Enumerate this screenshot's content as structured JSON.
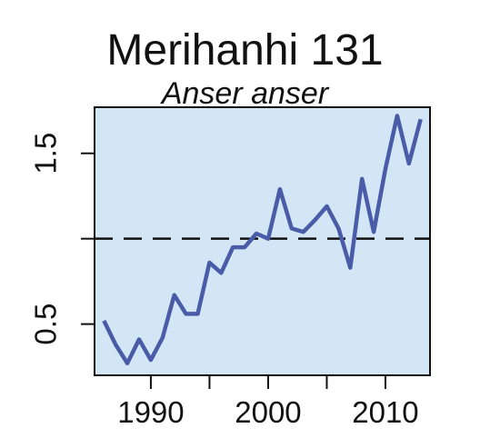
{
  "chart_data": {
    "type": "line",
    "title": "Merihanhi 131",
    "subtitle": "Anser anser",
    "xlabel": "",
    "ylabel": "",
    "xlim": [
      1985.2,
      2013.8
    ],
    "ylim": [
      0.2,
      1.77
    ],
    "x_ticks": [
      1990,
      1995,
      2000,
      2005,
      2010
    ],
    "x_tick_labels": [
      "1990",
      "",
      "2000",
      "",
      "2010"
    ],
    "y_ticks": [
      0.5,
      1.0,
      1.5
    ],
    "y_tick_labels": [
      "0.5",
      "",
      "1.5"
    ],
    "reference_line": {
      "y": 1.0,
      "style": "dashed"
    },
    "series": [
      {
        "color": "#4a5ca8",
        "x": [
          1986,
          1987,
          1988,
          1989,
          1990,
          1991,
          1992,
          1993,
          1994,
          1995,
          1996,
          1997,
          1998,
          1999,
          2000,
          2001,
          2002,
          2003,
          2004,
          2005,
          2006,
          2007,
          2008,
          2009,
          2010,
          2011,
          2012,
          2013
        ],
        "values": [
          0.52,
          0.38,
          0.27,
          0.41,
          0.29,
          0.42,
          0.67,
          0.56,
          0.56,
          0.86,
          0.8,
          0.95,
          0.95,
          1.03,
          1.0,
          1.29,
          1.06,
          1.04,
          1.11,
          1.19,
          1.06,
          0.83,
          1.35,
          1.04,
          1.41,
          1.72,
          1.44,
          1.7
        ]
      }
    ],
    "background_color": "#d3e6f6",
    "grid": false
  }
}
